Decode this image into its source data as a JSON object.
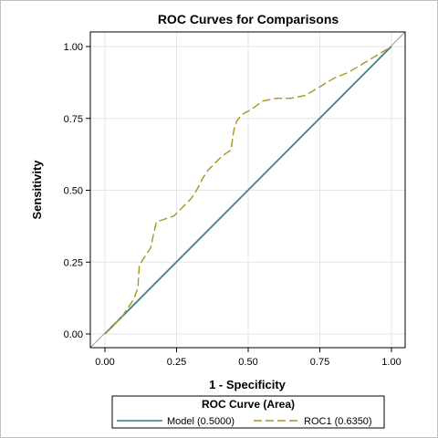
{
  "chart_data": {
    "type": "line",
    "title": "ROC Curves for Comparisons",
    "xlabel": "1 - Specificity",
    "ylabel": "Sensitivity",
    "xlim": [
      0,
      1
    ],
    "ylim": [
      0,
      1
    ],
    "x_ticks": [
      "0.00",
      "0.25",
      "0.50",
      "0.75",
      "1.00"
    ],
    "y_ticks": [
      "0.00",
      "0.25",
      "0.50",
      "0.75",
      "1.00"
    ],
    "grid": true,
    "legend": {
      "title": "ROC Curve (Area)",
      "position": "bottom"
    },
    "series": [
      {
        "name": "Model",
        "label": "Model  (0.5000)",
        "color": "#2f7f86",
        "style": "solid",
        "x": [
          0,
          1
        ],
        "y": [
          0,
          1
        ]
      },
      {
        "name": "ROC1",
        "label": "ROC1  (0.6350)",
        "color": "#a6961f",
        "style": "dashed",
        "x": [
          0,
          0.02,
          0.04,
          0.06,
          0.08,
          0.1,
          0.115,
          0.12,
          0.14,
          0.16,
          0.17,
          0.18,
          0.21,
          0.24,
          0.27,
          0.3,
          0.32,
          0.34,
          0.36,
          0.38,
          0.41,
          0.44,
          0.45,
          0.46,
          0.475,
          0.49,
          0.51,
          0.55,
          0.6,
          0.65,
          0.7,
          0.75,
          0.8,
          0.85,
          0.9,
          0.95,
          1.0
        ],
        "y": [
          0,
          0.02,
          0.04,
          0.06,
          0.09,
          0.12,
          0.16,
          0.24,
          0.27,
          0.3,
          0.35,
          0.39,
          0.4,
          0.41,
          0.44,
          0.47,
          0.5,
          0.54,
          0.57,
          0.59,
          0.62,
          0.64,
          0.71,
          0.74,
          0.76,
          0.77,
          0.78,
          0.81,
          0.82,
          0.82,
          0.83,
          0.86,
          0.89,
          0.91,
          0.94,
          0.97,
          1.0
        ]
      }
    ]
  }
}
